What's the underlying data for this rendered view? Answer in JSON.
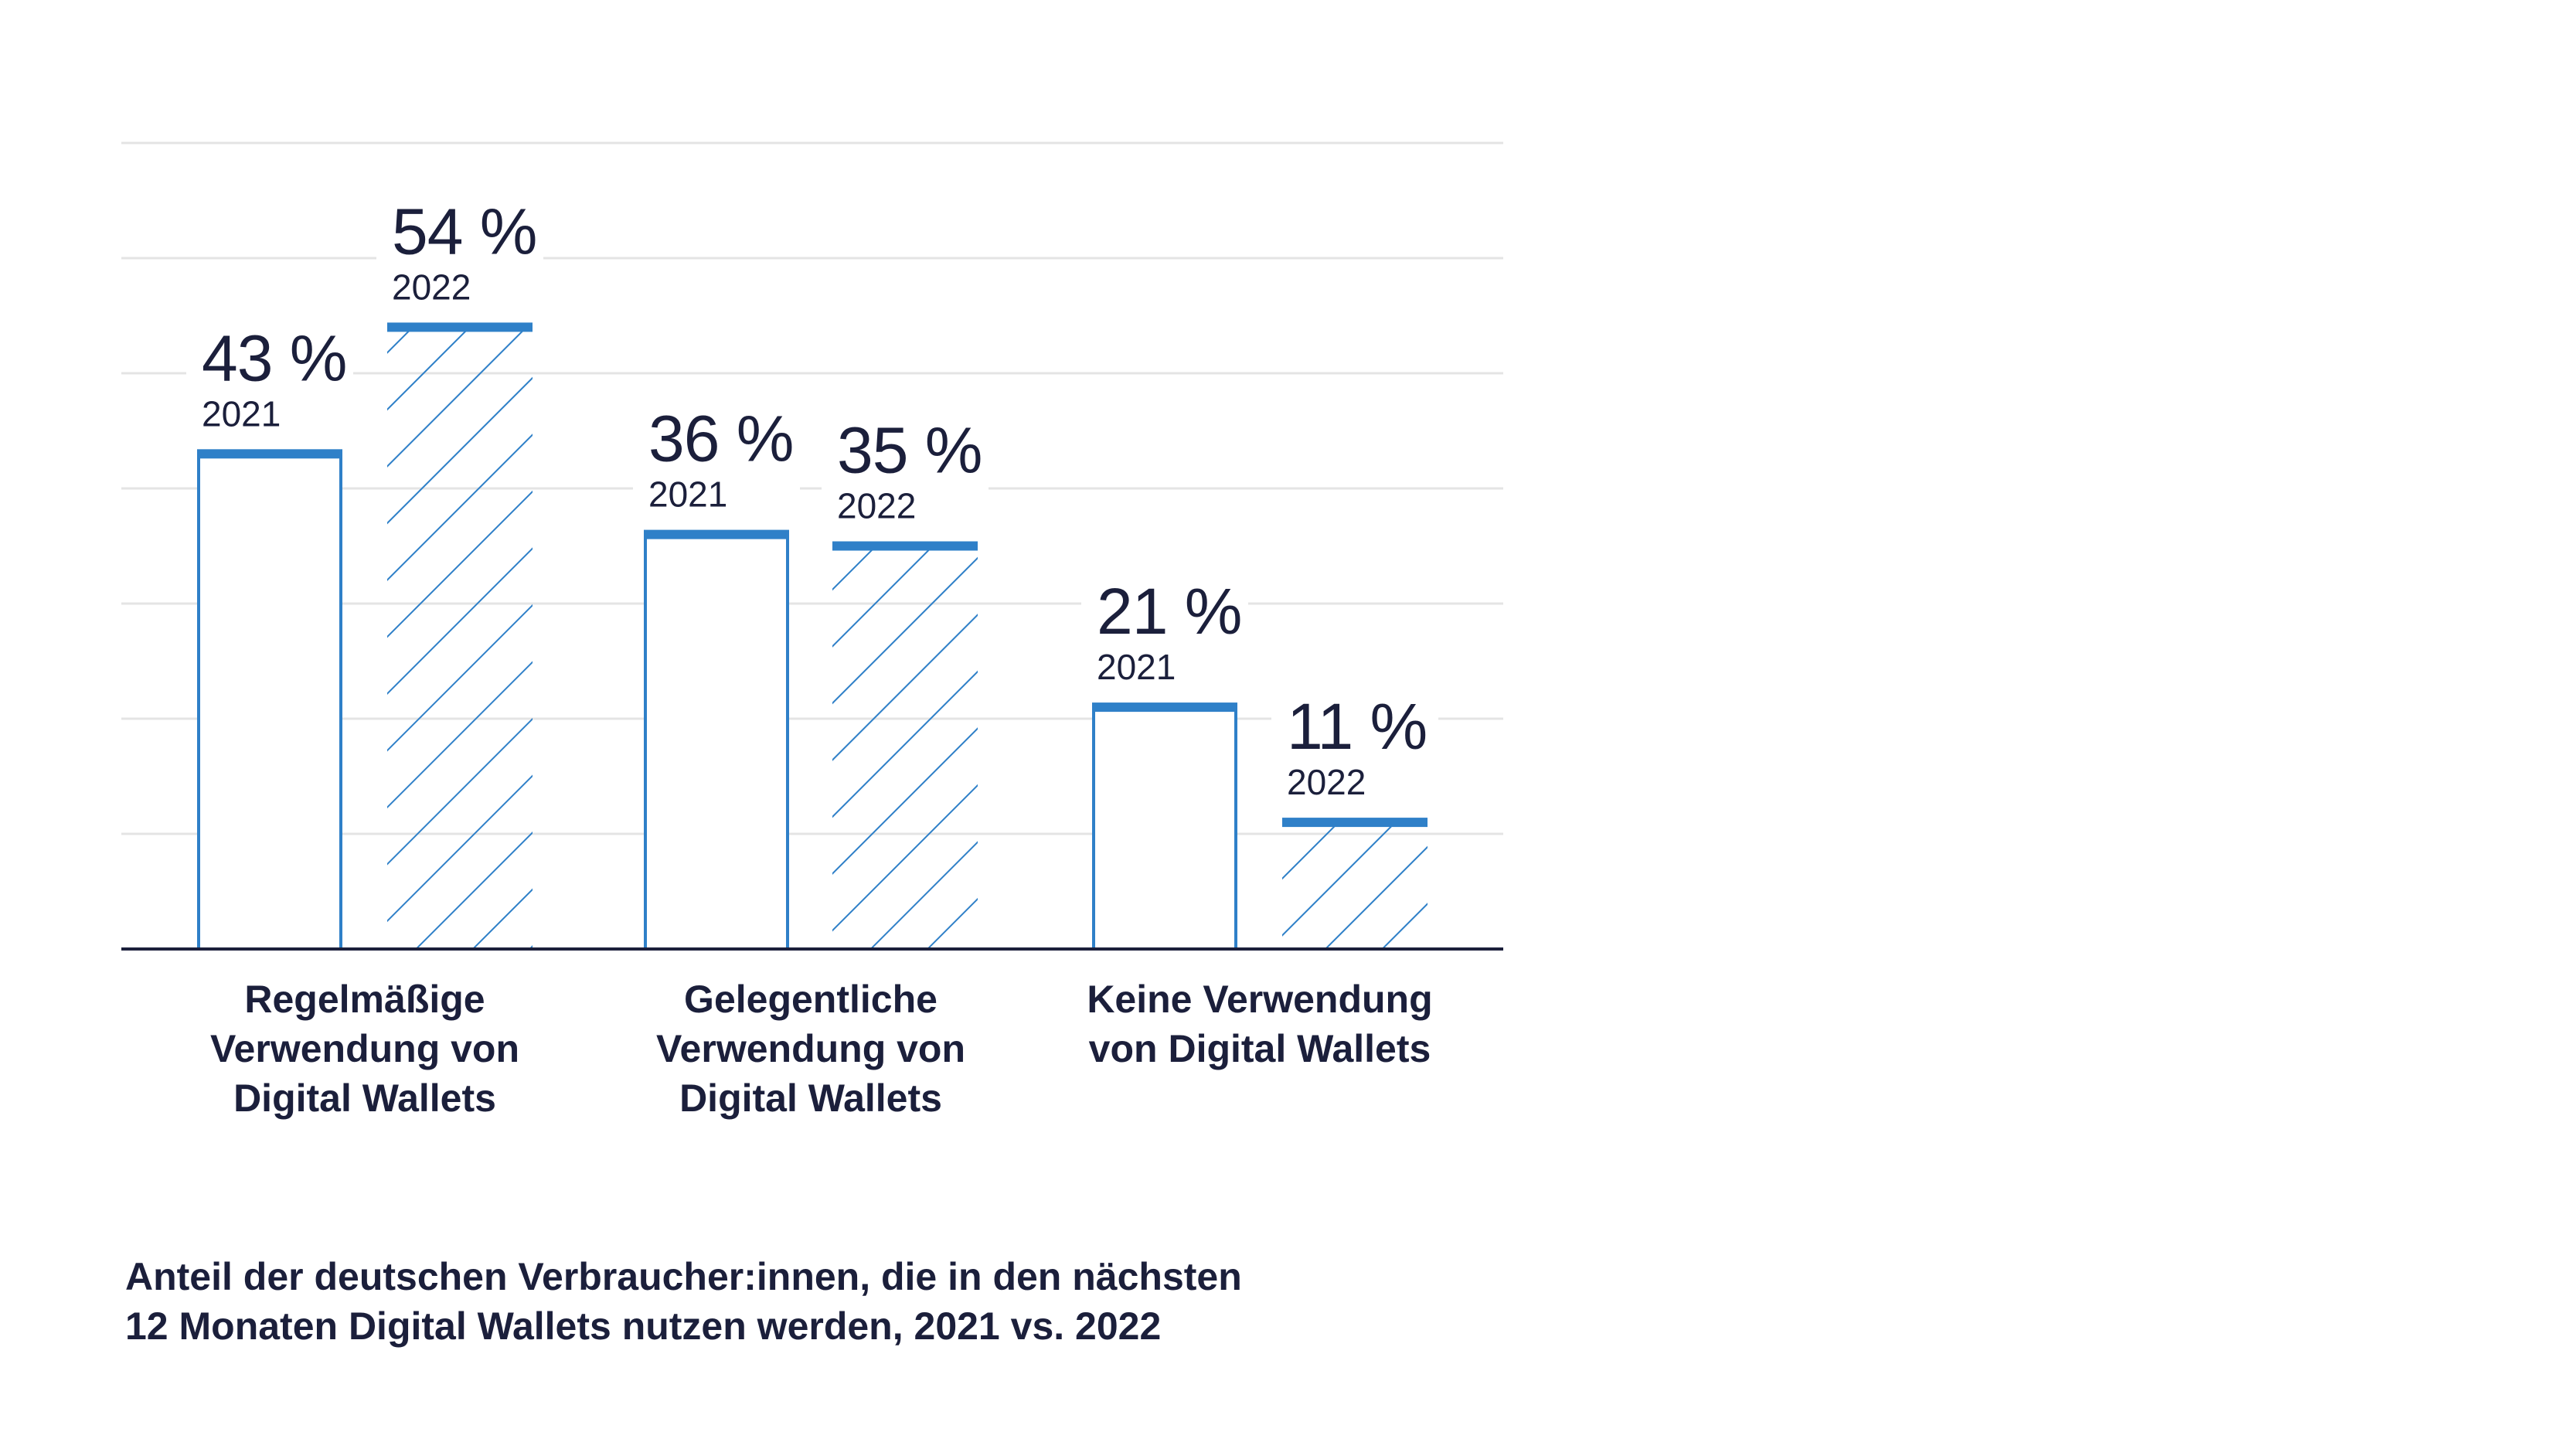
{
  "chart_data": {
    "type": "bar",
    "categories": [
      [
        "Regelmäßige",
        "Verwendung von",
        "Digital Wallets"
      ],
      [
        "Gelegentliche",
        "Verwendung von",
        "Digital Wallets"
      ],
      [
        "Keine Verwendung",
        "von Digital Wallets"
      ]
    ],
    "series": [
      {
        "name": "2021",
        "values": [
          43,
          36,
          21
        ],
        "labels": [
          "43 %",
          "36 %",
          "21 %"
        ],
        "style": "outline"
      },
      {
        "name": "2022",
        "values": [
          54,
          35,
          11
        ],
        "labels": [
          "54 %",
          "35 %",
          "11 %"
        ],
        "style": "hatched"
      }
    ],
    "ylim": [
      0,
      70
    ],
    "grid": true,
    "xlabel": "",
    "ylabel": "",
    "colors": {
      "bar_line": "#2f80c8",
      "hatch": "#2f80c8",
      "text": "#1b1f3b",
      "grid": "#e4e4e4",
      "axis": "#1b1f3b"
    }
  },
  "caption": {
    "line1": "Anteil der deutschen Verbraucher:innen, die in den nächsten",
    "line2": "12 Monaten Digital Wallets nutzen werden, 2021 vs. 2022"
  }
}
